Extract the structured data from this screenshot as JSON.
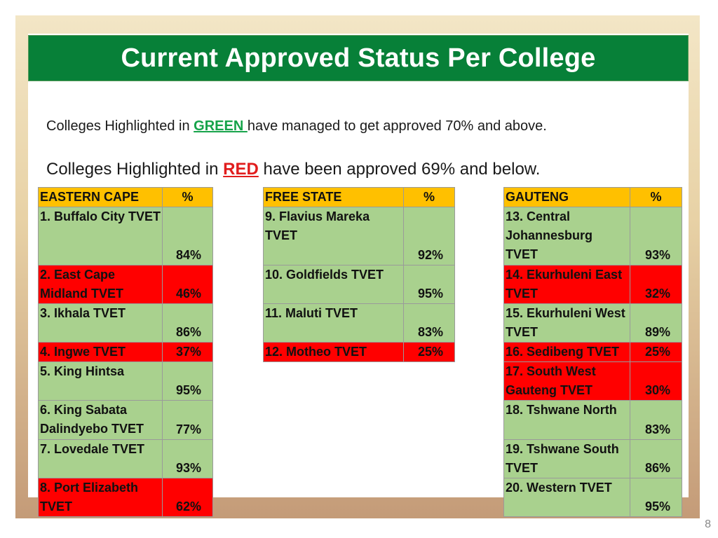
{
  "title": "Current Approved Status Per College",
  "legend": {
    "green_prefix": "Colleges Highlighted in ",
    "green_word": "GREEN ",
    "green_suffix": "have managed to get approved 70% and above.",
    "red_prefix": "Colleges Highlighted in ",
    "red_word": "RED",
    "red_suffix": " have been approved 69% and below."
  },
  "colors": {
    "green": "#a9d18e",
    "red": "#ff0000",
    "header": "#ffc000",
    "title_bar": "#078038"
  },
  "regions": [
    {
      "name": "EASTERN CAPE",
      "pct_header": "%",
      "colleges": [
        {
          "name": "1. Buffalo City TVET",
          "pct": "84%",
          "status": "green",
          "lines": 3
        },
        {
          "name": "2. East Cape Midland TVET",
          "pct": "46%",
          "status": "red",
          "lines": 2
        },
        {
          "name": "3. Ikhala TVET",
          "pct": "86%",
          "status": "green",
          "lines": 2
        },
        {
          "name": "4. Ingwe TVET",
          "pct": "37%",
          "status": "red",
          "lines": 1
        },
        {
          "name": "5. King Hintsa",
          "pct": "95%",
          "status": "green",
          "lines": 2
        },
        {
          "name": "6. King Sabata Dalindyebo TVET",
          "pct": "77%",
          "status": "green",
          "lines": 2
        },
        {
          "name": "7. Lovedale TVET",
          "pct": "93%",
          "status": "green",
          "lines": 2
        },
        {
          "name": "8. Port Elizabeth TVET",
          "pct": "62%",
          "status": "red",
          "lines": 2
        }
      ]
    },
    {
      "name": "FREE STATE",
      "pct_header": "%",
      "colleges": [
        {
          "name": "9. Flavius Mareka TVET",
          "pct": "92%",
          "status": "green",
          "lines": 3
        },
        {
          "name": "10. Goldfields TVET",
          "pct": "95%",
          "status": "green",
          "lines": 2
        },
        {
          "name": "11. Maluti TVET",
          "pct": "83%",
          "status": "green",
          "lines": 2
        },
        {
          "name": "12. Motheo TVET",
          "pct": "25%",
          "status": "red",
          "lines": 1
        }
      ]
    },
    {
      "name": "GAUTENG",
      "pct_header": "%",
      "colleges": [
        {
          "name": "13. Central Johannesburg TVET",
          "pct": "93%",
          "status": "green",
          "lines": 3
        },
        {
          "name": "14. Ekurhuleni East TVET",
          "pct": "32%",
          "status": "red",
          "lines": 2
        },
        {
          "name": "15. Ekurhuleni West TVET",
          "pct": "89%",
          "status": "green",
          "lines": 2
        },
        {
          "name": "16. Sedibeng TVET",
          "pct": "25%",
          "status": "red",
          "lines": 1
        },
        {
          "name": "17. South West Gauteng TVET",
          "pct": "30%",
          "status": "red",
          "lines": 2
        },
        {
          "name": "18. Tshwane North",
          "pct": "83%",
          "status": "green",
          "lines": 2
        },
        {
          "name": "19. Tshwane South TVET",
          "pct": "86%",
          "status": "green",
          "lines": 2
        },
        {
          "name": "20. Western TVET",
          "pct": "95%",
          "status": "green",
          "lines": 2
        }
      ]
    }
  ],
  "page_number": "8"
}
